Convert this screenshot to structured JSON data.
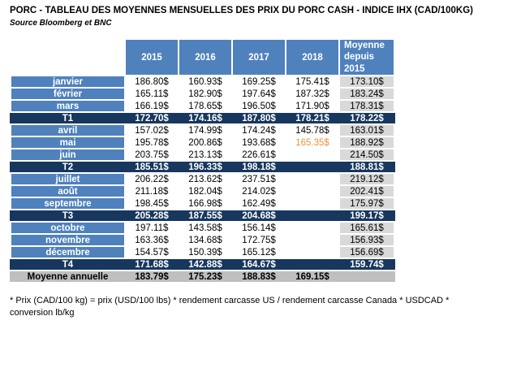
{
  "page": {
    "title": "PORC - TABLEAU DES MOYENNES MENSUELLES DES PRIX DU PORC CASH - INDICE IHX (CAD/100KG)",
    "subtitle": "Source Bloomberg et BNC",
    "footnote": "* Prix (CAD/100 kg) = prix (USD/100 lbs) * rendement carcasse US / rendement carcasse Canada * USDCAD * conversion lb/kg"
  },
  "colors": {
    "header_blue": "#4F81BD",
    "quarter_navy": "#17375E",
    "annual_gray": "#BFBFBF",
    "moyenne_column_gray": "#D9D9D9",
    "highlight_orange": "#E8923E"
  },
  "table": {
    "columns": [
      "2015",
      "2016",
      "2017",
      "2018",
      "Moyenne depuis 2015"
    ],
    "rows": [
      {
        "label": "janvier",
        "type": "month",
        "values": [
          "186.80$",
          "160.93$",
          "169.25$",
          "175.41$",
          "173.10$"
        ]
      },
      {
        "label": "février",
        "type": "month",
        "values": [
          "165.11$",
          "182.90$",
          "197.64$",
          "187.32$",
          "183.24$"
        ]
      },
      {
        "label": "mars",
        "type": "month",
        "values": [
          "166.19$",
          "178.65$",
          "196.50$",
          "171.90$",
          "178.31$"
        ]
      },
      {
        "label": "T1",
        "type": "quarter",
        "values": [
          "172.70$",
          "174.16$",
          "187.80$",
          "178.21$",
          "178.22$"
        ]
      },
      {
        "label": "avril",
        "type": "month",
        "values": [
          "157.02$",
          "174.99$",
          "174.24$",
          "145.78$",
          "163.01$"
        ]
      },
      {
        "label": "mai",
        "type": "month",
        "values": [
          "195.78$",
          "200.86$",
          "193.68$",
          "165.35$",
          "188.92$"
        ],
        "highlight_index": 3
      },
      {
        "label": "juin",
        "type": "month",
        "values": [
          "203.75$",
          "213.13$",
          "226.61$",
          "",
          "214.50$"
        ]
      },
      {
        "label": "T2",
        "type": "quarter",
        "values": [
          "185.51$",
          "196.33$",
          "198.18$",
          "",
          "188.81$"
        ]
      },
      {
        "label": "juillet",
        "type": "month",
        "values": [
          "206.22$",
          "213.62$",
          "237.51$",
          "",
          "219.12$"
        ]
      },
      {
        "label": "août",
        "type": "month",
        "values": [
          "211.18$",
          "182.04$",
          "214.02$",
          "",
          "202.41$"
        ]
      },
      {
        "label": "septembre",
        "type": "month",
        "values": [
          "198.45$",
          "166.98$",
          "162.49$",
          "",
          "175.97$"
        ]
      },
      {
        "label": "T3",
        "type": "quarter",
        "values": [
          "205.28$",
          "187.55$",
          "204.68$",
          "",
          "199.17$"
        ]
      },
      {
        "label": "octobre",
        "type": "month",
        "values": [
          "197.11$",
          "143.58$",
          "156.14$",
          "",
          "165.61$"
        ]
      },
      {
        "label": "novembre",
        "type": "month",
        "values": [
          "163.36$",
          "134.68$",
          "172.75$",
          "",
          "156.93$"
        ]
      },
      {
        "label": "décembre",
        "type": "month",
        "values": [
          "154.57$",
          "150.39$",
          "165.12$",
          "",
          "156.69$"
        ]
      },
      {
        "label": "T4",
        "type": "quarter",
        "values": [
          "171.68$",
          "142.88$",
          "164.67$",
          "",
          "159.74$"
        ]
      },
      {
        "label": "Moyenne annuelle",
        "type": "annual",
        "values": [
          "183.79$",
          "175.23$",
          "188.83$",
          "169.15$",
          ""
        ]
      }
    ]
  }
}
